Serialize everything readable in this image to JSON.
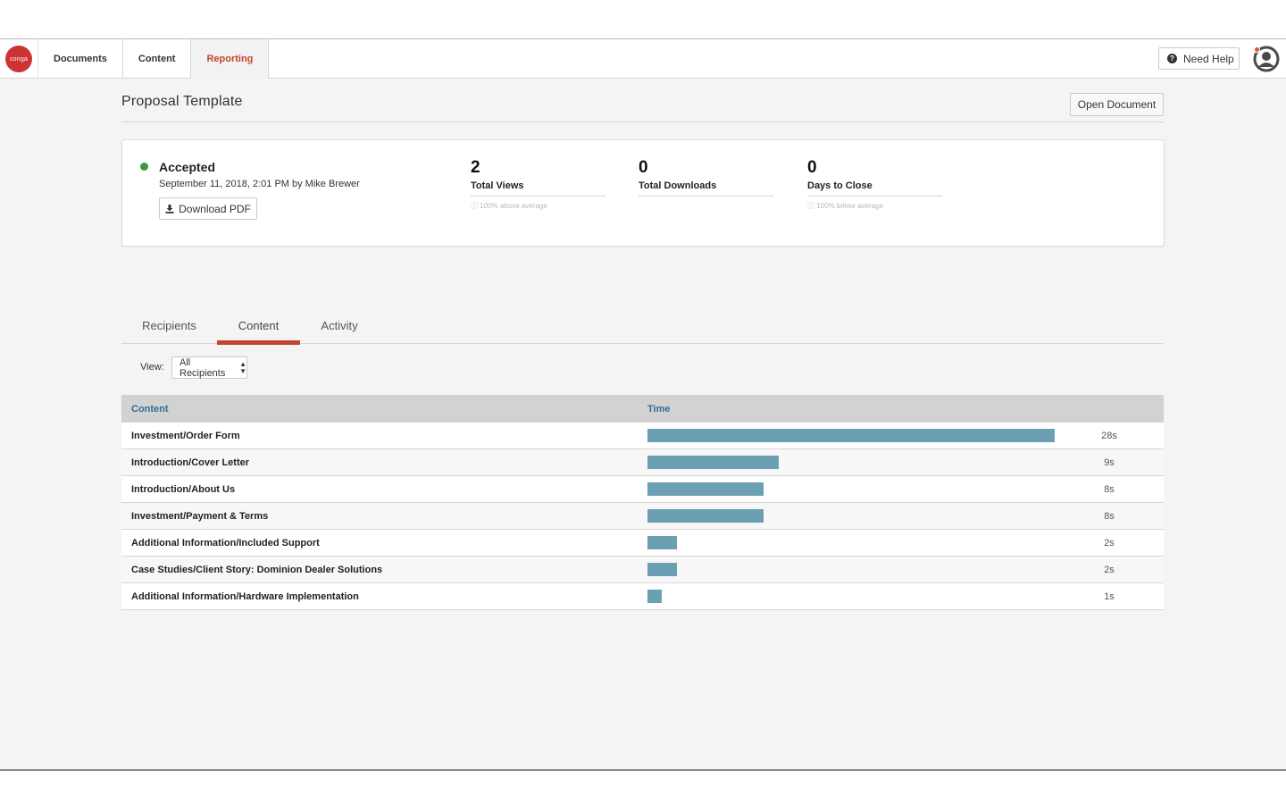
{
  "nav": {
    "logo_text": "conga",
    "items": [
      "Documents",
      "Content",
      "Reporting"
    ],
    "active": "Reporting",
    "help_label": "Need Help"
  },
  "page": {
    "title": "Proposal Template",
    "open_document_label": "Open Document"
  },
  "summary": {
    "status": "Accepted",
    "status_color": "#3a9b3a",
    "date": "September 11, 2018, 2:01 PM by Mike Brewer",
    "download_label": "Download PDF",
    "stats": [
      {
        "value": "2",
        "label": "Total Views",
        "note": "ⓘ 100% above average"
      },
      {
        "value": "0",
        "label": "Total Downloads",
        "note": ""
      },
      {
        "value": "0",
        "label": "Days to Close",
        "note": "ⓘ 100% below average"
      }
    ]
  },
  "tabs": [
    "Recipients",
    "Content",
    "Activity"
  ],
  "active_tab": "Content",
  "filter": {
    "label": "View:",
    "value": "All Recipients"
  },
  "table": {
    "columns": [
      "Content",
      "Time"
    ],
    "max_seconds": 28,
    "rows": [
      {
        "name": "Investment/Order Form",
        "seconds": 28,
        "time": "28s"
      },
      {
        "name": "Introduction/Cover Letter",
        "seconds": 9,
        "time": "9s"
      },
      {
        "name": "Introduction/About Us",
        "seconds": 8,
        "time": "8s"
      },
      {
        "name": "Investment/Payment & Terms",
        "seconds": 8,
        "time": "8s"
      },
      {
        "name": "Additional Information/Included Support",
        "seconds": 2,
        "time": "2s"
      },
      {
        "name": "Case Studies/Client Story: Dominion Dealer Solutions",
        "seconds": 2,
        "time": "2s"
      },
      {
        "name": "Additional Information/Hardware Implementation",
        "seconds": 1,
        "time": "1s"
      }
    ]
  },
  "colors": {
    "accent": "#c2452d",
    "bar": "#6ba0b3",
    "header_text": "#2d6f95"
  }
}
